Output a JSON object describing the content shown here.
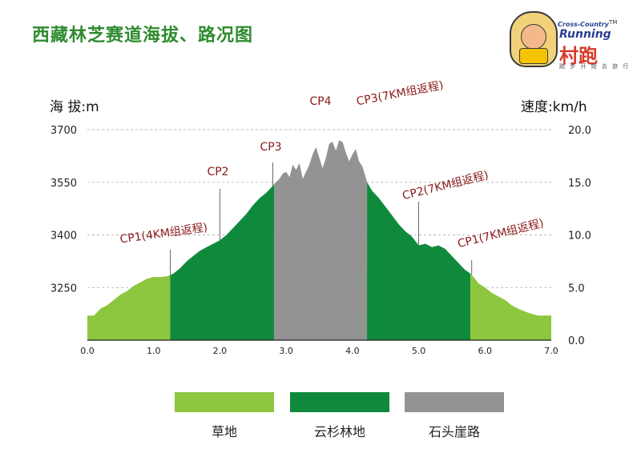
{
  "header": {
    "title": "西藏林芝赛道海拔、路况图"
  },
  "logo": {
    "tagline_top": "Cross-Country",
    "tagline_running": "Running",
    "name": "村跑",
    "slogan": "跑 步 开 始 去 旅 行",
    "trademark": "TM"
  },
  "chart_data": {
    "type": "area",
    "title": "西藏林芝赛道海拔、路况图",
    "xlabel": "",
    "ylabel": "海 拔:m",
    "y2label": "速度:km/h",
    "xlim": [
      0,
      7
    ],
    "ylim": [
      3100,
      3700
    ],
    "y2lim": [
      0,
      20
    ],
    "grid": true,
    "x_ticks": [
      "0.0",
      "1.0",
      "2.0",
      "3.0",
      "4.0",
      "5.0",
      "6.0",
      "7.0"
    ],
    "y_ticks": [
      "3250",
      "3400",
      "3550",
      "3700"
    ],
    "y2_ticks": [
      "0.0",
      "5.0",
      "10.0",
      "15.0",
      "20.0"
    ],
    "x": [
      0.0,
      0.1,
      0.2,
      0.3,
      0.4,
      0.5,
      0.6,
      0.7,
      0.8,
      0.9,
      1.0,
      1.1,
      1.2,
      1.25,
      1.3,
      1.4,
      1.5,
      1.6,
      1.7,
      1.8,
      1.9,
      2.0,
      2.1,
      2.2,
      2.3,
      2.4,
      2.5,
      2.6,
      2.7,
      2.8,
      2.82,
      2.9,
      2.95,
      3.0,
      3.05,
      3.1,
      3.15,
      3.2,
      3.25,
      3.3,
      3.35,
      3.4,
      3.45,
      3.5,
      3.55,
      3.6,
      3.65,
      3.7,
      3.75,
      3.8,
      3.85,
      3.9,
      3.95,
      4.0,
      4.05,
      4.1,
      4.15,
      4.2,
      4.22,
      4.3,
      4.4,
      4.5,
      4.6,
      4.7,
      4.8,
      4.9,
      5.0,
      5.1,
      5.2,
      5.3,
      5.4,
      5.5,
      5.6,
      5.7,
      5.78,
      5.85,
      5.9,
      6.0,
      6.1,
      6.2,
      6.3,
      6.4,
      6.5,
      6.6,
      6.7,
      6.8,
      6.9,
      7.0
    ],
    "y": [
      3170,
      3170,
      3190,
      3200,
      3215,
      3230,
      3240,
      3255,
      3265,
      3275,
      3280,
      3280,
      3282,
      3285,
      3290,
      3305,
      3325,
      3340,
      3355,
      3365,
      3375,
      3385,
      3400,
      3420,
      3440,
      3460,
      3485,
      3505,
      3520,
      3540,
      3545,
      3560,
      3575,
      3580,
      3565,
      3600,
      3585,
      3605,
      3560,
      3580,
      3600,
      3630,
      3650,
      3620,
      3590,
      3620,
      3660,
      3665,
      3640,
      3670,
      3665,
      3635,
      3610,
      3630,
      3645,
      3610,
      3595,
      3565,
      3550,
      3525,
      3505,
      3480,
      3455,
      3430,
      3410,
      3395,
      3370,
      3375,
      3365,
      3370,
      3360,
      3340,
      3320,
      3300,
      3290,
      3275,
      3262,
      3250,
      3235,
      3225,
      3215,
      3200,
      3190,
      3182,
      3175,
      3170,
      3170,
      3170
    ],
    "segments": [
      {
        "name": "草地",
        "from": 0.0,
        "to": 1.25,
        "color": "#8dc63f"
      },
      {
        "name": "云杉林地",
        "from": 1.25,
        "to": 2.82,
        "color": "#0f8a3c"
      },
      {
        "name": "石头崖路",
        "from": 2.82,
        "to": 4.22,
        "color": "#939393"
      },
      {
        "name": "云杉林地",
        "from": 4.22,
        "to": 5.78,
        "color": "#0f8a3c"
      },
      {
        "name": "草地",
        "from": 5.78,
        "to": 7.0,
        "color": "#8dc63f"
      }
    ],
    "checkpoints": [
      {
        "label": "CP1(4KM组返程)",
        "x": 1.25,
        "rotated": true
      },
      {
        "label": "CP2",
        "x": 2.0,
        "rotated": false
      },
      {
        "label": "CP3",
        "x": 2.8,
        "rotated": false
      },
      {
        "label": "CP4",
        "x": 3.7,
        "rotated": false
      },
      {
        "label": "CP3(7KM组返程)",
        "x": 4.2,
        "rotated": true
      },
      {
        "label": "CP2(7KM组返程)",
        "x": 5.0,
        "rotated": true
      },
      {
        "label": "CP1(7KM组返程)",
        "x": 5.8,
        "rotated": true
      }
    ],
    "legend": [
      {
        "name": "草地",
        "color": "#8dc63f"
      },
      {
        "name": "云杉林地",
        "color": "#0f8a3c"
      },
      {
        "name": "石头崖路",
        "color": "#939393"
      }
    ],
    "legend_position": "bottom",
    "checkpoint_label_color": "#8b1a1a"
  }
}
